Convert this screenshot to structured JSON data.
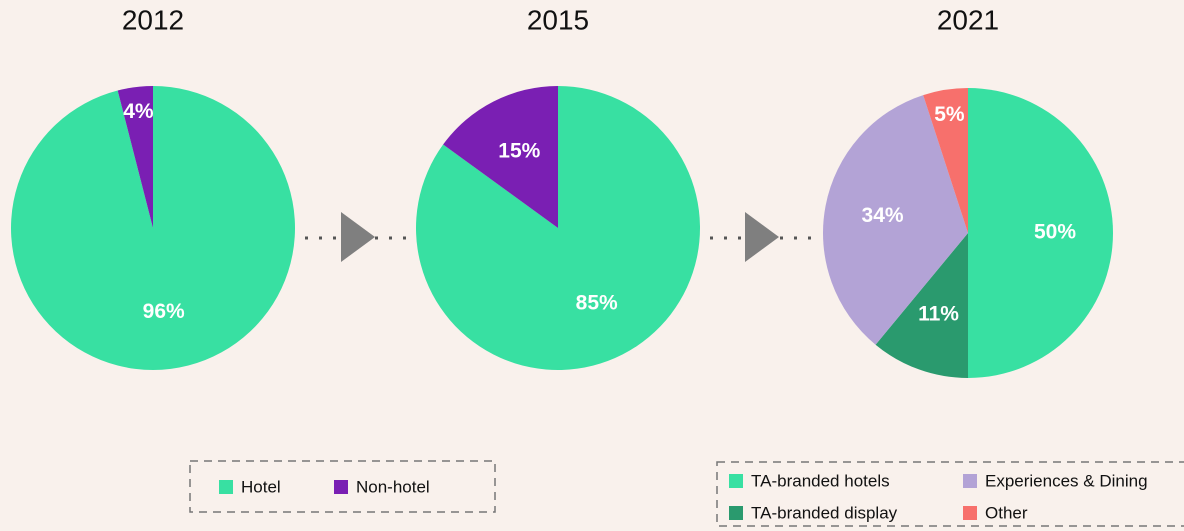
{
  "chart_data": [
    {
      "type": "pie",
      "title": "2012",
      "categories": [
        "Hotel",
        "Non-hotel"
      ],
      "values": [
        96,
        4
      ],
      "value_labels": [
        "96%",
        "4%"
      ],
      "colors": [
        "#38e0a2",
        "#7a1fb3"
      ]
    },
    {
      "type": "pie",
      "title": "2015",
      "values": [
        85,
        15
      ],
      "value_labels": [
        "85%",
        "15%"
      ],
      "colors": [
        "#38e0a2",
        "#7a1fb3"
      ]
    },
    {
      "type": "pie",
      "title": "2021",
      "categories": [
        "TA-branded hotels",
        "TA-branded display",
        "Experiences & Dining",
        "Other"
      ],
      "values": [
        50,
        11,
        34,
        5
      ],
      "value_labels": [
        "50%",
        "11%",
        "34%",
        "5%"
      ],
      "colors": [
        "#38e0a2",
        "#2a9a6e",
        "#b3a3d6",
        "#f7706c"
      ]
    }
  ]
}
